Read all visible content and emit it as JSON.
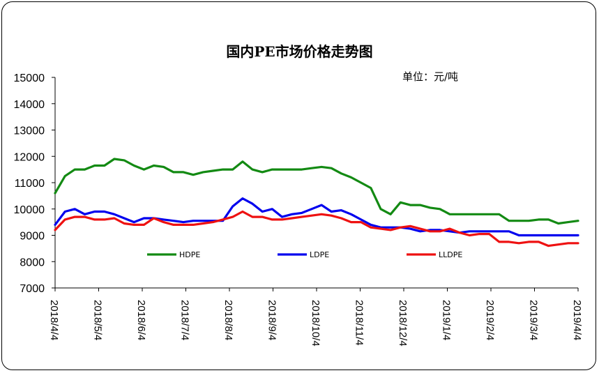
{
  "chart_data": {
    "type": "line",
    "title": "国内PE市场价格走势图",
    "unit_label": "单位：元/吨",
    "ylim": [
      7000,
      15000
    ],
    "yticks": [
      "15000",
      "14000",
      "13000",
      "12000",
      "11000",
      "10000",
      "9000",
      "8000",
      "7000"
    ],
    "xticks": [
      "2018/4/4",
      "2018/5/4",
      "2018/6/4",
      "2018/7/4",
      "2018/8/4",
      "2018/9/4",
      "2018/10/4",
      "2018/11/4",
      "2018/12/4",
      "2019/1/4",
      "2019/2/4",
      "2019/3/4",
      "2019/4/4"
    ],
    "legend_position": "inside-bottom",
    "grid": false,
    "series": [
      {
        "name": "HDPE",
        "color": "#138a13",
        "values": [
          10600,
          11250,
          11500,
          11500,
          11650,
          11650,
          11900,
          11850,
          11650,
          11500,
          11650,
          11600,
          11400,
          11400,
          11300,
          11400,
          11450,
          11500,
          11500,
          11800,
          11500,
          11400,
          11500,
          11500,
          11500,
          11500,
          11550,
          11600,
          11550,
          11350,
          11200,
          11000,
          10800,
          10000,
          9800,
          10250,
          10150,
          10150,
          10050,
          10000,
          9800,
          9800,
          9800,
          9800,
          9800,
          9800,
          9550,
          9550,
          9550,
          9600,
          9600,
          9450,
          9500,
          9550
        ]
      },
      {
        "name": "LDPE",
        "color": "#0000ee",
        "values": [
          9400,
          9900,
          10000,
          9800,
          9900,
          9900,
          9800,
          9650,
          9500,
          9650,
          9650,
          9600,
          9550,
          9500,
          9550,
          9550,
          9550,
          9550,
          10100,
          10400,
          10200,
          9900,
          10000,
          9700,
          9800,
          9850,
          10000,
          10150,
          9900,
          9950,
          9800,
          9600,
          9400,
          9300,
          9300,
          9300,
          9250,
          9150,
          9200,
          9200,
          9150,
          9100,
          9150,
          9150,
          9150,
          9150,
          9150,
          9000,
          9000,
          9000,
          9000,
          9000,
          9000,
          9000
        ]
      },
      {
        "name": "LLDPE",
        "color": "#ee1111",
        "values": [
          9200,
          9600,
          9700,
          9700,
          9600,
          9600,
          9650,
          9450,
          9400,
          9400,
          9650,
          9500,
          9400,
          9400,
          9400,
          9450,
          9500,
          9600,
          9700,
          9900,
          9700,
          9700,
          9600,
          9600,
          9650,
          9700,
          9750,
          9800,
          9750,
          9650,
          9500,
          9500,
          9300,
          9250,
          9200,
          9300,
          9350,
          9250,
          9150,
          9150,
          9250,
          9100,
          9000,
          9050,
          9050,
          8750,
          8750,
          8700,
          8750,
          8750,
          8600,
          8650,
          8700,
          8700
        ]
      }
    ]
  }
}
